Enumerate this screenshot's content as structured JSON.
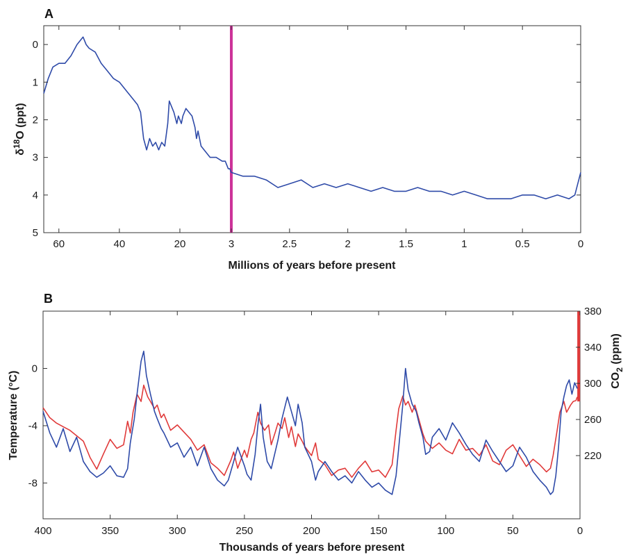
{
  "chart_data": [
    {
      "panel": "A",
      "type": "line",
      "xlabel": "Millions of years before present",
      "ylabel_parts": {
        "prefix": "δ",
        "sup": "18",
        "suffix": "O (ppt)"
      },
      "y_inverted": true,
      "ylim": [
        5,
        -0.5
      ],
      "yticks": [
        0,
        1,
        2,
        3,
        4,
        5
      ],
      "x_axis_note": "piecewise scale: left segment 65–3 Ma, right segment 3–0 Ma",
      "xticks": [
        "60",
        "40",
        "20",
        "3",
        "2.5",
        "2",
        "1.5",
        "1",
        "0.5",
        "0"
      ],
      "marker_line": {
        "x": 3,
        "color": "#cc3399"
      },
      "series": [
        {
          "color": "#2e4aa8",
          "x": [
            65,
            63.5,
            62,
            60,
            58,
            56,
            54,
            52,
            51,
            50,
            48,
            46,
            44,
            42,
            40,
            38,
            36,
            34,
            33,
            32,
            31,
            30,
            29,
            28,
            27,
            26,
            25,
            24,
            23.5,
            22,
            21,
            20.5,
            20,
            19.5,
            19,
            18,
            17,
            16,
            15,
            14.5,
            14,
            13,
            12,
            11,
            10,
            8,
            6,
            5,
            4,
            3.5,
            3,
            2.9,
            2.8,
            2.7,
            2.6,
            2.5,
            2.4,
            2.3,
            2.2,
            2.1,
            2.0,
            1.9,
            1.8,
            1.7,
            1.6,
            1.5,
            1.4,
            1.3,
            1.2,
            1.1,
            1.0,
            0.9,
            0.8,
            0.7,
            0.6,
            0.5,
            0.4,
            0.3,
            0.2,
            0.1,
            0.05,
            0
          ],
          "y": [
            1.3,
            0.9,
            0.6,
            0.5,
            0.5,
            0.3,
            0.0,
            -0.2,
            0.0,
            0.1,
            0.2,
            0.5,
            0.7,
            0.9,
            1.0,
            1.2,
            1.4,
            1.6,
            1.8,
            2.5,
            2.8,
            2.5,
            2.7,
            2.6,
            2.8,
            2.6,
            2.7,
            2.1,
            1.5,
            1.8,
            2.1,
            1.9,
            2.0,
            2.1,
            1.9,
            1.7,
            1.8,
            1.9,
            2.2,
            2.5,
            2.3,
            2.7,
            2.8,
            2.9,
            3.0,
            3.0,
            3.1,
            3.1,
            3.3,
            3.3,
            3.4,
            3.5,
            3.5,
            3.6,
            3.8,
            3.7,
            3.6,
            3.8,
            3.7,
            3.8,
            3.7,
            3.8,
            3.9,
            3.8,
            3.9,
            3.9,
            3.8,
            3.9,
            3.9,
            4.0,
            3.9,
            4.0,
            4.1,
            4.1,
            4.1,
            4.0,
            4.0,
            4.1,
            4.0,
            4.1,
            4.0,
            3.4
          ]
        }
      ]
    },
    {
      "panel": "B",
      "type": "line",
      "xlabel": "Thousands of years before present",
      "ylabel": "Temperature (°C)",
      "ylabel_right_parts": {
        "prefix": "CO",
        "sub": "2",
        "suffix": " (ppm)"
      },
      "xlim": [
        400,
        0
      ],
      "xticks": [
        400,
        350,
        300,
        250,
        200,
        150,
        100,
        50,
        0
      ],
      "yticks_left": [
        "0",
        "-4",
        "-8"
      ],
      "yticks_right": [
        380,
        340,
        300,
        260,
        220
      ],
      "ylim_left": [
        -10.5,
        4
      ],
      "ylim_right": [
        150,
        380
      ],
      "series": [
        {
          "axis": "right",
          "color": "#e03a3a",
          "x": [
            400,
            395,
            390,
            385,
            380,
            370,
            365,
            360,
            355,
            350,
            345,
            340,
            337,
            335,
            333,
            330,
            327,
            325,
            322,
            320,
            317,
            315,
            312,
            310,
            305,
            300,
            295,
            290,
            285,
            280,
            275,
            270,
            265,
            260,
            258,
            255,
            250,
            248,
            245,
            243,
            240,
            238,
            235,
            232,
            230,
            227,
            225,
            222,
            220,
            217,
            215,
            212,
            210,
            207,
            205,
            200,
            197,
            195,
            190,
            185,
            180,
            175,
            170,
            165,
            160,
            155,
            150,
            145,
            140,
            137,
            135,
            132,
            130,
            128,
            125,
            123,
            120,
            117,
            115,
            110,
            105,
            100,
            95,
            90,
            85,
            80,
            75,
            70,
            65,
            60,
            55,
            50,
            45,
            40,
            35,
            30,
            25,
            22,
            20,
            17,
            15,
            12,
            10,
            7,
            5,
            3,
            2
          ],
          "y": [
            273,
            262,
            256,
            252,
            248,
            236,
            218,
            205,
            222,
            238,
            228,
            232,
            258,
            245,
            268,
            288,
            280,
            298,
            285,
            280,
            272,
            276,
            262,
            266,
            248,
            254,
            246,
            238,
            226,
            232,
            212,
            206,
            198,
            215,
            224,
            206,
            226,
            218,
            238,
            245,
            268,
            256,
            248,
            254,
            232,
            246,
            256,
            250,
            262,
            240,
            252,
            230,
            244,
            236,
            230,
            220,
            234,
            216,
            210,
            198,
            204,
            206,
            196,
            206,
            214,
            202,
            204,
            196,
            210,
            248,
            272,
            286,
            276,
            280,
            268,
            276,
            260,
            244,
            236,
            228,
            234,
            226,
            222,
            238,
            226,
            228,
            220,
            232,
            214,
            210,
            226,
            232,
            220,
            208,
            216,
            210,
            202,
            206,
            220,
            248,
            268,
            280,
            268,
            276,
            280,
            281,
            285
          ]
        },
        {
          "axis": "right",
          "color": "#e03a3a",
          "note": "vertical red bar at present",
          "x": [
            1,
            1
          ],
          "y": [
            280,
            380
          ]
        },
        {
          "axis": "left",
          "color": "#2e4aa8",
          "x": [
            400,
            395,
            390,
            385,
            380,
            375,
            370,
            365,
            360,
            355,
            350,
            345,
            340,
            337,
            335,
            332,
            330,
            327,
            325,
            323,
            320,
            317,
            315,
            312,
            310,
            305,
            300,
            295,
            290,
            285,
            280,
            275,
            270,
            265,
            262,
            258,
            255,
            250,
            248,
            245,
            242,
            240,
            238,
            236,
            233,
            230,
            225,
            222,
            218,
            215,
            212,
            210,
            207,
            205,
            200,
            197,
            195,
            190,
            185,
            180,
            175,
            170,
            165,
            160,
            155,
            150,
            145,
            140,
            137,
            135,
            132,
            130,
            128,
            125,
            122,
            120,
            117,
            115,
            112,
            110,
            105,
            100,
            95,
            90,
            85,
            80,
            75,
            70,
            65,
            60,
            55,
            50,
            45,
            40,
            35,
            30,
            25,
            22,
            20,
            18,
            16,
            14,
            12,
            10,
            8,
            6,
            4,
            2
          ],
          "y": [
            -3.0,
            -4.5,
            -5.5,
            -4.2,
            -5.8,
            -4.8,
            -6.5,
            -7.2,
            -7.6,
            -7.3,
            -6.8,
            -7.5,
            -7.6,
            -7.0,
            -5.2,
            -3.5,
            -1.8,
            0.5,
            1.2,
            -0.5,
            -1.8,
            -3.0,
            -3.5,
            -4.2,
            -4.5,
            -5.5,
            -5.2,
            -6.2,
            -5.5,
            -6.8,
            -5.5,
            -7.0,
            -7.8,
            -8.2,
            -7.8,
            -6.5,
            -5.5,
            -6.8,
            -7.4,
            -7.8,
            -6.0,
            -4.0,
            -2.5,
            -4.8,
            -6.5,
            -7.0,
            -5.0,
            -3.5,
            -2.0,
            -3.0,
            -4.0,
            -2.5,
            -3.8,
            -5.5,
            -6.5,
            -7.8,
            -7.2,
            -6.5,
            -7.2,
            -7.8,
            -7.5,
            -8.0,
            -7.2,
            -7.8,
            -8.3,
            -8.0,
            -8.5,
            -8.8,
            -7.5,
            -5.5,
            -2.5,
            0.0,
            -1.5,
            -2.5,
            -3.0,
            -3.8,
            -4.8,
            -6.0,
            -5.8,
            -4.8,
            -4.2,
            -5.0,
            -3.8,
            -4.5,
            -5.3,
            -6.0,
            -6.5,
            -5.0,
            -5.8,
            -6.5,
            -7.2,
            -6.8,
            -5.5,
            -6.2,
            -7.2,
            -7.8,
            -8.3,
            -8.8,
            -8.6,
            -7.5,
            -5.5,
            -3.0,
            -2.0,
            -1.2,
            -0.8,
            -1.8,
            -1.0,
            -1.4
          ]
        }
      ]
    }
  ]
}
